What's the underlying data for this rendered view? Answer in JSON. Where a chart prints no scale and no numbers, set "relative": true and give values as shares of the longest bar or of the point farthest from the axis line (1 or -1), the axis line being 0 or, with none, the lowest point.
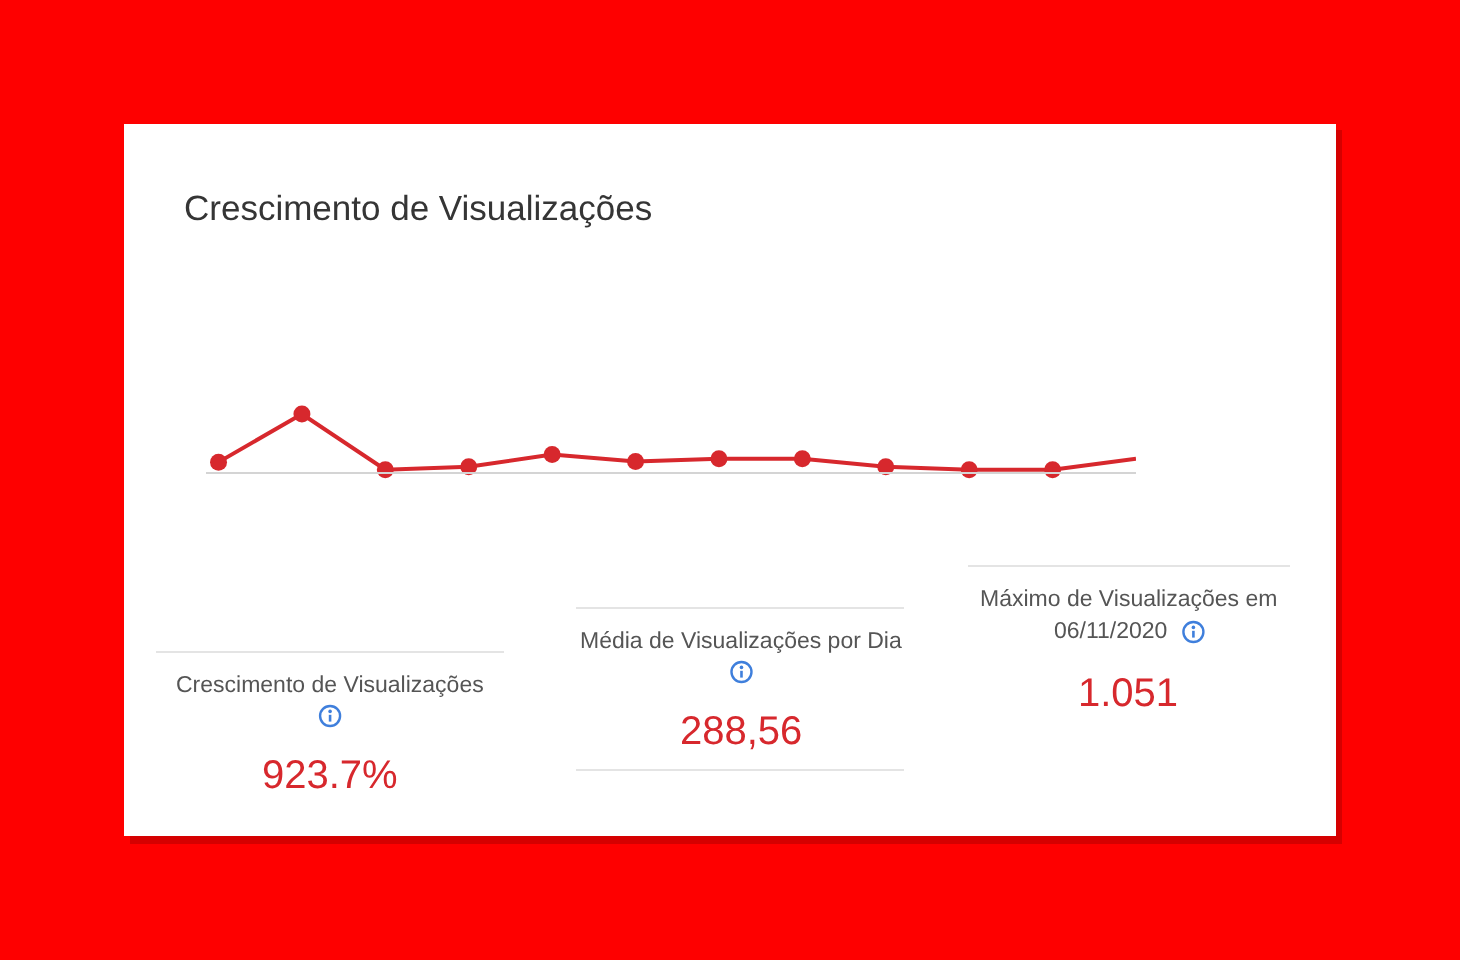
{
  "chart_data": [
    {
      "type": "line",
      "title": "Crescimento de Visualizações",
      "categories": [
        null,
        null,
        null,
        null,
        null,
        null,
        null,
        null,
        null,
        null,
        null,
        null
      ],
      "relative": true,
      "line_style": "solid",
      "series": [
        {
          "color": "#d7282d",
          "marker": "circle",
          "values": [
            0.17,
            1,
            0.04,
            0.09,
            0.3,
            0.18,
            0.23,
            0.23,
            0.09,
            0.04,
            0.04,
            null
          ]
        },
        {
          "color": "#d7282d",
          "values": [
            null,
            null,
            null,
            null,
            null,
            null,
            null,
            null,
            null,
            null,
            0.04,
            0.23
          ]
        }
      ]
    },
    {
      "type": "other",
      "title": "Crescimento de Visualizações",
      "annotations": [
        "923.7%"
      ]
    },
    {
      "type": "other",
      "title": "Média de Visualizações por Dia",
      "annotations": [
        "288,56"
      ]
    },
    {
      "type": "other",
      "title": "Máximo de Visualizações em 06/11/2020",
      "annotations": [
        "1.051"
      ]
    }
  ]
}
